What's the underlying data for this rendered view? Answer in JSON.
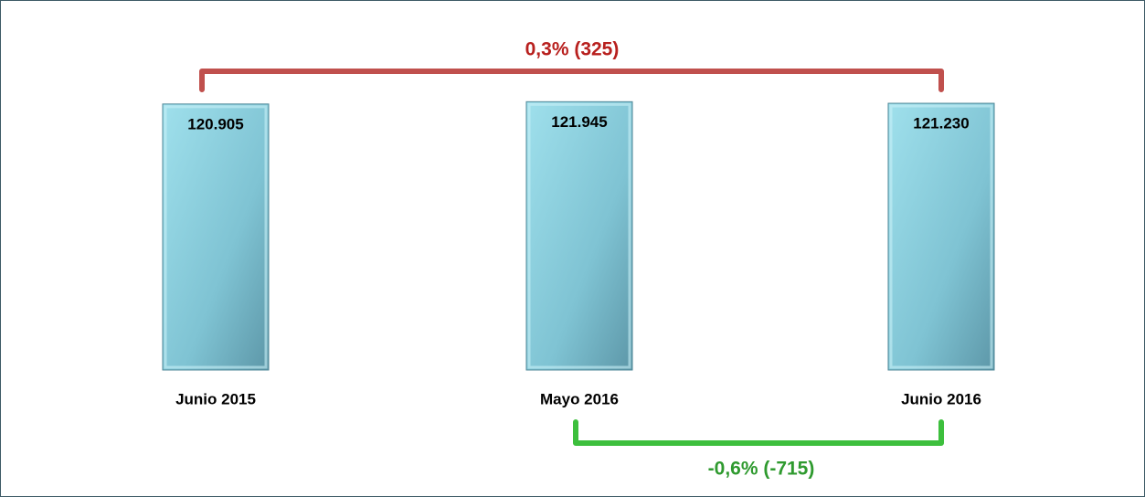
{
  "chart_data": {
    "type": "bar",
    "categories": [
      "Junio 2015",
      "Mayo 2016",
      "Junio 2016"
    ],
    "values": [
      120905,
      121945,
      121230
    ],
    "value_labels": [
      "120.905",
      "121.945",
      "121.230"
    ],
    "color": "#7fc8d8",
    "ylim": [
      0,
      122500
    ],
    "annotations": [
      {
        "text": "0,3% (325)",
        "color": "#c0504d"
      },
      {
        "text": "-0,6% (-715)",
        "color": "#3dbf3d"
      }
    ]
  }
}
